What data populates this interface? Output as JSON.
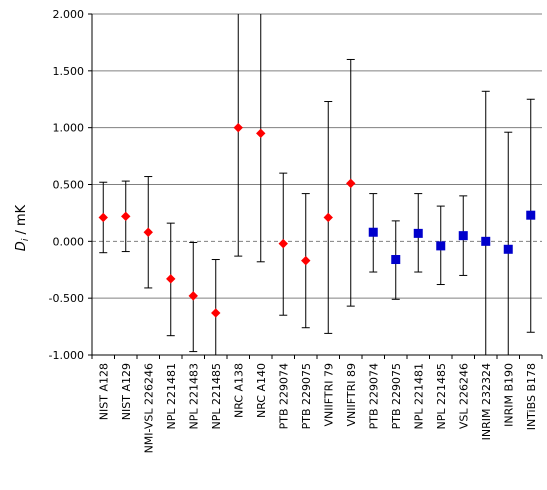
{
  "chart_data": {
    "type": "scatter",
    "title": "",
    "ylabel": {
      "symbol": "D",
      "subscript": "i",
      "unit": " / mK"
    },
    "xlabel": "",
    "ylim": [
      -1.0,
      2.0
    ],
    "yticks": [
      2.0,
      1.5,
      1.0,
      0.5,
      0.0,
      -0.5,
      -1.0
    ],
    "ytick_labels": [
      "2.000",
      "1.500",
      "1.000",
      "0.500",
      "0.000",
      "-0.500",
      "-1.000"
    ],
    "grid": "horizontal",
    "zero_line": "dashed",
    "categories": [
      "NIST A128",
      "NIST A129",
      "NMI-VSL 226246",
      "NPL 221481",
      "NPL 221483",
      "NPL 221485",
      "NRC A138",
      "NRC A140",
      "PTB 229074",
      "PTB 229075",
      "VNIIFTRI 79",
      "VNIIFTRI 89",
      "PTB 229074",
      "PTB 229075",
      "NPL 221481",
      "NPL 221485",
      "VSL 226246",
      "INRIM 232324",
      "INRIM B190",
      "INTiBS B178"
    ],
    "series": [
      {
        "marker": "diamond",
        "color": "#ff0000",
        "indices": [
          0,
          1,
          2,
          3,
          4,
          5,
          6,
          7,
          8,
          9,
          10,
          11
        ],
        "values": [
          0.21,
          0.22,
          0.08,
          -0.33,
          -0.48,
          -0.63,
          1.0,
          0.95,
          -0.02,
          -0.17,
          0.21,
          0.51
        ],
        "lower": [
          -0.1,
          -0.09,
          -0.41,
          -0.83,
          -0.97,
          -1.0,
          -0.13,
          -0.18,
          -0.65,
          -0.76,
          -0.81,
          -0.57
        ],
        "upper": [
          0.52,
          0.53,
          0.57,
          0.16,
          -0.01,
          -0.16,
          2.0,
          2.0,
          0.6,
          0.42,
          1.23,
          1.6
        ]
      },
      {
        "marker": "square",
        "color": "#0000cc",
        "indices": [
          12,
          13,
          14,
          15,
          16,
          17,
          18,
          19
        ],
        "values": [
          0.08,
          -0.16,
          0.07,
          -0.04,
          0.05,
          0.0,
          -0.07,
          0.23
        ],
        "lower": [
          -0.27,
          -0.51,
          -0.27,
          -0.38,
          -0.3,
          -1.0,
          -1.0,
          -0.8
        ],
        "upper": [
          0.42,
          0.18,
          0.42,
          0.31,
          0.4,
          1.32,
          0.96,
          1.25
        ]
      }
    ]
  }
}
